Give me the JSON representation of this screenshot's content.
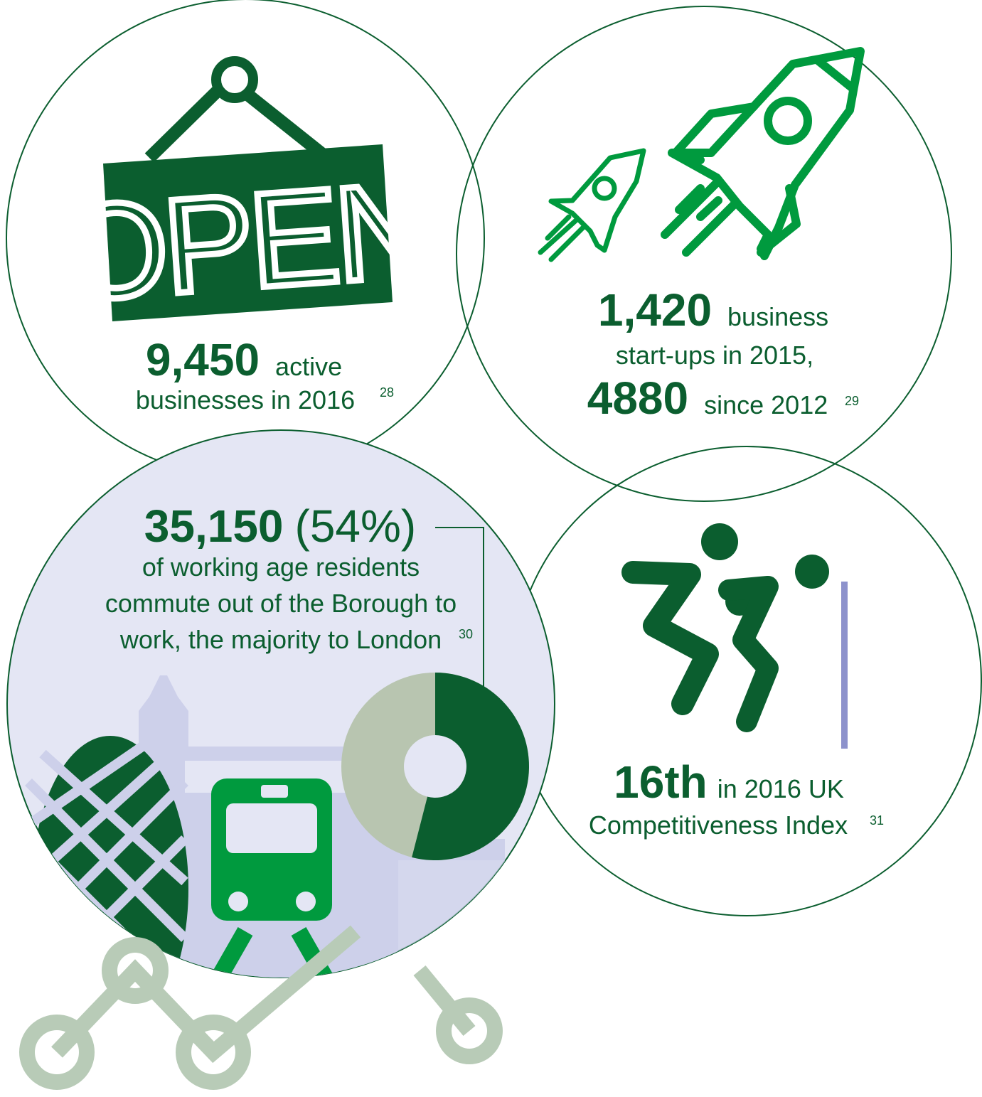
{
  "sign": "OPEN",
  "panels": {
    "businesses": {
      "number": "9,450",
      "word": "active",
      "line": "businesses in 2016",
      "note": "28"
    },
    "startups": {
      "number": "1,420",
      "word": "business",
      "line": "start-ups in 2015,",
      "number2": "4880",
      "word2": "since 2012",
      "note": "29"
    },
    "commute": {
      "number": "35,150",
      "share": {
        "value": 54,
        "label": "(54%)"
      },
      "lines": [
        "of working age residents",
        "commute out of the Borough to",
        "work, the majority to London"
      ],
      "note": "30"
    },
    "competitiveness": {
      "number": "16th",
      "word": "in 2016 UK",
      "line": "Competitiveness Index",
      "note": "31"
    }
  }
}
